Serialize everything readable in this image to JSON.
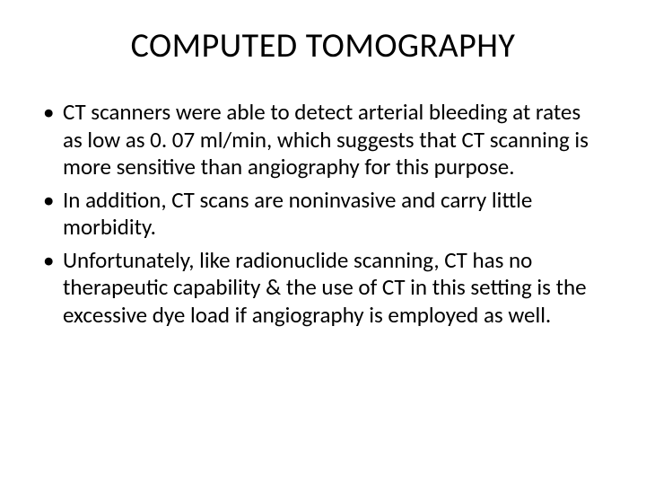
{
  "slide": {
    "title": "COMPUTED TOMOGRAPHY",
    "bullets": [
      "CT scanners were able to detect arterial bleeding at rates as low as 0. 07 ml/min, which suggests that CT scanning is more sensitive than angiography for this purpose.",
      "In addition, CT scans are noninvasive and carry little morbidity.",
      "Unfortunately, like radionuclide scanning, CT has no therapeutic capability &  the use of CT in this setting is the excessive dye load if angiography is employed as well."
    ]
  },
  "style": {
    "background_color": "#ffffff",
    "text_color": "#000000",
    "title_fontsize": 38,
    "body_fontsize": 25,
    "font_family": "Calibri"
  }
}
